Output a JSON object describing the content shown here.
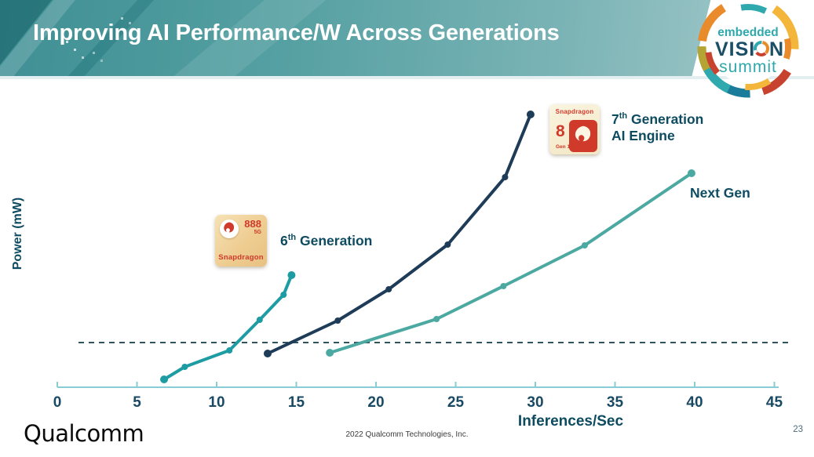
{
  "header": {
    "title": "Improving AI Performance/W Across Generations"
  },
  "summit_logo": {
    "word1": "embedded",
    "word2_part1": "VISI",
    "word2_part2": "N",
    "word3": "summit",
    "arc_colors": [
      "#f3b63b",
      "#e98a2b",
      "#2fa9ad",
      "#c8432f",
      "#1a7b9b",
      "#b3a433"
    ]
  },
  "chart_data": {
    "type": "line",
    "xlabel": "Inferences/Sec",
    "ylabel": "Power (mW)",
    "x_ticks": [
      0,
      5,
      10,
      15,
      20,
      25,
      30,
      35,
      40,
      45
    ],
    "xlim": [
      0,
      46
    ],
    "y_axis_note": "y-axis has no numeric tick labels; y values are relative power units estimated from the figure",
    "grid": false,
    "legend_position": "inline-annotations",
    "threshold_line": {
      "style": "dashed",
      "y": 57,
      "color": "#30535e"
    },
    "axis_color": "#88ccd6",
    "tick_label_color": "#1a4a63",
    "series": [
      {
        "name": "6th Generation",
        "color": "#1e9ca4",
        "points": [
          [
            6.7,
            10
          ],
          [
            8.0,
            26
          ],
          [
            10.8,
            47
          ],
          [
            12.7,
            86
          ],
          [
            14.2,
            118
          ],
          [
            14.7,
            143
          ]
        ]
      },
      {
        "name": "7th Generation AI Engine",
        "color": "#1e3c58",
        "points": [
          [
            13.2,
            43
          ],
          [
            17.6,
            85
          ],
          [
            20.8,
            125
          ],
          [
            24.5,
            182
          ],
          [
            28.1,
            268
          ],
          [
            29.7,
            348
          ]
        ]
      },
      {
        "name": "Next Gen",
        "color": "#4ba9a1",
        "points": [
          [
            17.1,
            44
          ],
          [
            23.8,
            87
          ],
          [
            28.0,
            129
          ],
          [
            33.1,
            181
          ],
          [
            39.8,
            273
          ]
        ]
      }
    ]
  },
  "labels": {
    "gen6": {
      "num": "6",
      "sup": "th",
      "rest": " Generation"
    },
    "gen7": {
      "num": "7",
      "sup": "th",
      "rest": " Generation",
      "line2": "AI Engine"
    },
    "next_gen": "Next Gen"
  },
  "badges": {
    "snapdragon_888": {
      "brand": "Snapdragon",
      "model": "888",
      "sub": "5G"
    },
    "snapdragon_8_gen1": {
      "brand": "Snapdragon",
      "model": "8",
      "sub": "Gen 1"
    }
  },
  "footer": {
    "logo_text": "Qualcomm",
    "copyright": "2022 Qualcomm Technologies, Inc.",
    "page_number": "23"
  },
  "colors": {
    "header_gradient_left": "#3f8f94",
    "header_gradient_right": "#a9cccd",
    "label_text": "#0d4b61",
    "snapdragon_red": "#d03a2b"
  }
}
